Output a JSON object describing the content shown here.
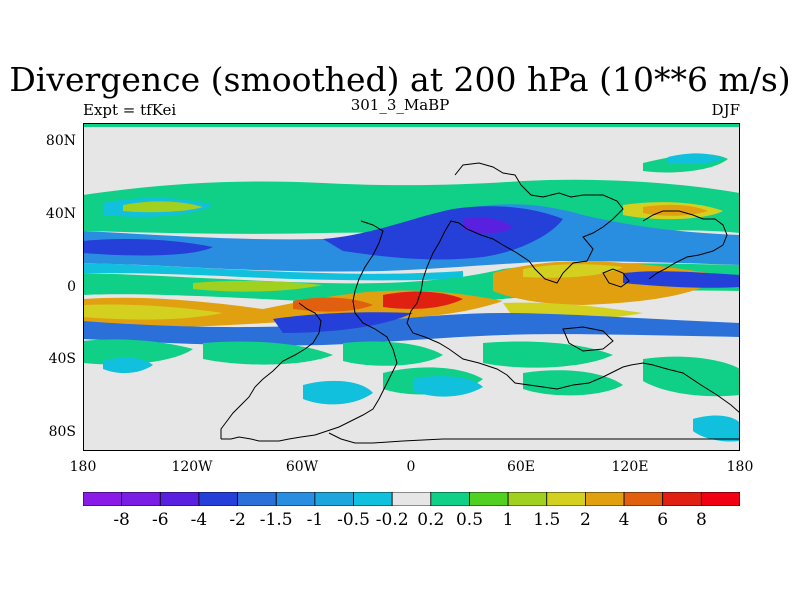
{
  "header": {
    "title": "Divergence (smoothed) at 200 hPa (10**6 m/s)",
    "left": "Expt = tfKei",
    "center": "301_3_MaBP",
    "right": "DJF"
  },
  "axes": {
    "y_ticks": [
      "80N",
      "40N",
      "0",
      "40S",
      "80S"
    ],
    "x_ticks": [
      "180",
      "120W",
      "60W",
      "0",
      "60E",
      "120E",
      "180"
    ]
  },
  "colorbar": {
    "labels": [
      "-8",
      "-6",
      "-4",
      "-2",
      "-1.5",
      "-1",
      "-0.5",
      "-0.2",
      "0.2",
      "0.5",
      "1",
      "1.5",
      "2",
      "4",
      "6",
      "8"
    ],
    "colors": [
      "#8a1ae6",
      "#7a1ee6",
      "#5a20e0",
      "#2440d8",
      "#2a70d8",
      "#2a8ee0",
      "#1ca6dc",
      "#10c0dc",
      "#e6e6e6",
      "#10d088",
      "#50d020",
      "#a0d020",
      "#d4d020",
      "#e0a010",
      "#e06010",
      "#e02010",
      "#f00010"
    ]
  },
  "colors": {
    "zero": "#e6e6e6",
    "neg_strong": "#2440d8",
    "neg_mid": "#2a70d8",
    "neg_weak": "#10c0dc",
    "pos_weak": "#10d088",
    "pos_mid": "#d4d020",
    "pos_strong": "#e06010",
    "coast": "#000000"
  }
}
